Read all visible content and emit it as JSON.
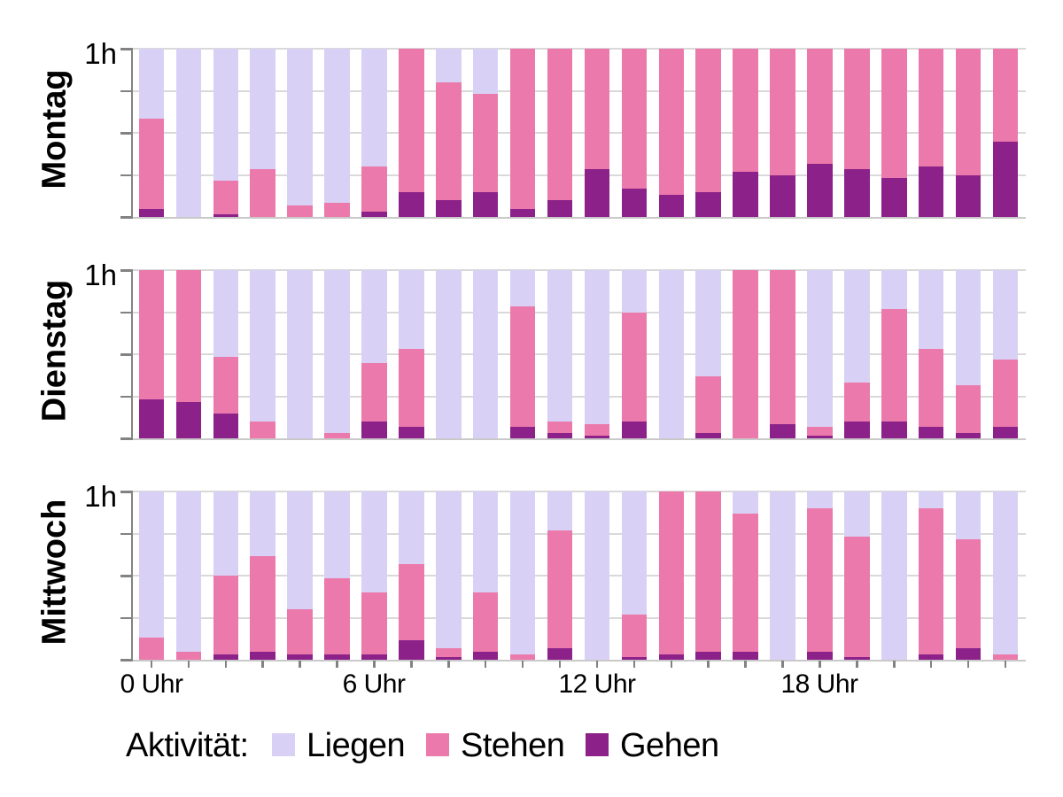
{
  "chart_data": {
    "type": "bar",
    "stacked": true,
    "orientation": "vertical",
    "ylim_minutes": [
      0,
      60
    ],
    "ytick_label": "1h",
    "xtick_labels": [
      {
        "hour": 0,
        "label": "0 Uhr"
      },
      {
        "hour": 6,
        "label": "6 Uhr"
      },
      {
        "hour": 12,
        "label": "12 Uhr"
      },
      {
        "hour": 18,
        "label": "18 Uhr"
      }
    ],
    "series_order_bottom_to_top": [
      "Gehen",
      "Stehen",
      "Liegen"
    ],
    "colors": {
      "Liegen": "#d8d1f5",
      "Stehen": "#ec79ab",
      "Gehen": "#8b2189",
      "axis": "#828282",
      "gridline": "#d9d9d9",
      "baseline": "#c9c9c9",
      "text": "#000000"
    },
    "panels": [
      {
        "label": "Montag",
        "values": {
          "Liegen": [
            25,
            60,
            47,
            43,
            56,
            55,
            42,
            0,
            12,
            16,
            0,
            0,
            0,
            0,
            0,
            0,
            0,
            0,
            0,
            0,
            0,
            0,
            0,
            0
          ],
          "Stehen": [
            32,
            0,
            12,
            17,
            4,
            5,
            16,
            51,
            42,
            35,
            57,
            54,
            43,
            50,
            52,
            51,
            44,
            45,
            41,
            43,
            46,
            42,
            45,
            33
          ],
          "Gehen": [
            3,
            0,
            1,
            0,
            0,
            0,
            2,
            9,
            6,
            9,
            3,
            6,
            17,
            10,
            8,
            9,
            16,
            15,
            19,
            17,
            14,
            18,
            15,
            27
          ]
        }
      },
      {
        "label": "Dienstag",
        "values": {
          "Liegen": [
            0,
            0,
            31,
            54,
            60,
            58,
            33,
            28,
            60,
            60,
            13,
            54,
            55,
            15,
            60,
            38,
            0,
            0,
            56,
            40,
            14,
            28,
            41,
            32
          ],
          "Stehen": [
            46,
            47,
            20,
            6,
            0,
            2,
            21,
            28,
            0,
            0,
            43,
            4,
            4,
            39,
            0,
            20,
            60,
            55,
            3,
            14,
            40,
            28,
            17,
            24
          ],
          "Gehen": [
            14,
            13,
            9,
            0,
            0,
            0,
            6,
            4,
            0,
            0,
            4,
            2,
            1,
            6,
            0,
            2,
            0,
            5,
            1,
            6,
            6,
            4,
            2,
            4
          ]
        }
      },
      {
        "label": "Mittwoch",
        "values": {
          "Liegen": [
            52,
            57,
            30,
            23,
            42,
            31,
            36,
            26,
            56,
            36,
            58,
            14,
            60,
            44,
            0,
            0,
            8,
            60,
            6,
            16,
            60,
            6,
            17,
            58
          ],
          "Stehen": [
            8,
            3,
            28,
            34,
            16,
            27,
            22,
            27,
            3,
            21,
            2,
            42,
            0,
            15,
            58,
            57,
            49,
            0,
            51,
            43,
            0,
            52,
            39,
            2
          ],
          "Gehen": [
            0,
            0,
            2,
            3,
            2,
            2,
            2,
            7,
            1,
            3,
            0,
            4,
            0,
            1,
            2,
            3,
            3,
            0,
            3,
            1,
            0,
            2,
            4,
            0
          ]
        }
      }
    ],
    "legend": {
      "title": "Aktivität:",
      "items": [
        {
          "label": "Liegen",
          "color": "#d8d1f5"
        },
        {
          "label": "Stehen",
          "color": "#ec79ab"
        },
        {
          "label": "Gehen",
          "color": "#8b2189"
        }
      ]
    }
  }
}
